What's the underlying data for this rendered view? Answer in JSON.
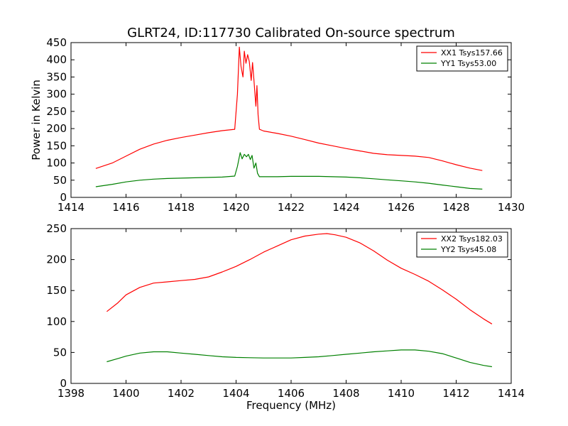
{
  "figure": {
    "title": "GLRT24, ID:117730 Calibrated On-source spectrum"
  },
  "chart_data": [
    {
      "type": "line",
      "title": "GLRT24, ID:117730 Calibrated On-source spectrum",
      "xlabel": "",
      "ylabel": "Power in Kelvin",
      "xlim": [
        1414,
        1430
      ],
      "ylim": [
        0,
        450
      ],
      "xticks": [
        1414,
        1416,
        1418,
        1420,
        1422,
        1424,
        1426,
        1428,
        1430
      ],
      "yticks": [
        0,
        50,
        100,
        150,
        200,
        250,
        300,
        350,
        400,
        450
      ],
      "legend_position": "top-right",
      "grid": false,
      "series": [
        {
          "name": "XX1 Tsys157.66",
          "color": "#ff0000",
          "x": [
            1414.9,
            1415.5,
            1416.0,
            1416.5,
            1417.0,
            1417.5,
            1418.0,
            1418.5,
            1419.0,
            1419.5,
            1419.95,
            1420.05,
            1420.12,
            1420.18,
            1420.25,
            1420.3,
            1420.36,
            1420.42,
            1420.48,
            1420.55,
            1420.6,
            1420.65,
            1420.72,
            1420.76,
            1420.8,
            1420.85,
            1421.0,
            1421.5,
            1422.0,
            1422.5,
            1423.0,
            1423.5,
            1424.0,
            1424.5,
            1425.0,
            1425.5,
            1426.0,
            1426.5,
            1427.0,
            1427.5,
            1428.0,
            1428.5,
            1428.95
          ],
          "values": [
            84,
            100,
            120,
            140,
            155,
            166,
            174,
            181,
            188,
            194,
            198,
            300,
            437,
            380,
            350,
            425,
            390,
            415,
            395,
            340,
            392,
            340,
            265,
            325,
            240,
            198,
            193,
            186,
            178,
            168,
            158,
            150,
            142,
            135,
            128,
            124,
            122,
            120,
            116,
            106,
            95,
            85,
            78
          ]
        },
        {
          "name": "YY1 Tsys53.00",
          "color": "#008000",
          "x": [
            1414.9,
            1415.5,
            1416.0,
            1416.5,
            1417.0,
            1417.5,
            1418.0,
            1418.5,
            1419.0,
            1419.5,
            1419.95,
            1420.05,
            1420.15,
            1420.22,
            1420.3,
            1420.38,
            1420.45,
            1420.52,
            1420.58,
            1420.65,
            1420.72,
            1420.78,
            1420.85,
            1421.0,
            1421.5,
            1422.0,
            1422.5,
            1423.0,
            1423.5,
            1424.0,
            1424.5,
            1425.0,
            1425.5,
            1426.0,
            1426.5,
            1427.0,
            1427.5,
            1428.0,
            1428.5,
            1428.95
          ],
          "values": [
            31,
            38,
            45,
            50,
            53,
            55,
            56,
            57,
            58,
            59,
            62,
            90,
            130,
            112,
            125,
            118,
            125,
            110,
            122,
            85,
            100,
            70,
            60,
            60,
            60,
            61,
            61,
            61,
            60,
            59,
            57,
            54,
            51,
            48,
            45,
            41,
            36,
            31,
            26,
            24
          ]
        }
      ]
    },
    {
      "type": "line",
      "title": "",
      "xlabel": "Frequency (MHz)",
      "ylabel": "",
      "xlim": [
        1398,
        1414
      ],
      "ylim": [
        0,
        250
      ],
      "xticks": [
        1398,
        1400,
        1402,
        1404,
        1406,
        1408,
        1410,
        1412,
        1414
      ],
      "yticks": [
        0,
        50,
        100,
        150,
        200,
        250
      ],
      "legend_position": "top-right",
      "grid": false,
      "series": [
        {
          "name": "XX2 Tsys182.03",
          "color": "#ff0000",
          "x": [
            1399.3,
            1399.7,
            1400.0,
            1400.5,
            1401.0,
            1401.5,
            1402.0,
            1402.5,
            1403.0,
            1403.5,
            1404.0,
            1404.5,
            1405.0,
            1405.5,
            1406.0,
            1406.5,
            1407.0,
            1407.3,
            1407.6,
            1408.0,
            1408.5,
            1409.0,
            1409.5,
            1410.0,
            1410.5,
            1411.0,
            1411.5,
            1412.0,
            1412.5,
            1413.0,
            1413.3
          ],
          "values": [
            116,
            130,
            143,
            155,
            162,
            164,
            166,
            168,
            172,
            180,
            189,
            200,
            212,
            222,
            232,
            238,
            241,
            242,
            240,
            236,
            227,
            214,
            199,
            186,
            176,
            165,
            151,
            136,
            119,
            104,
            96
          ]
        },
        {
          "name": "YY2 Tsys45.08",
          "color": "#008000",
          "x": [
            1399.3,
            1399.7,
            1400.0,
            1400.5,
            1401.0,
            1401.5,
            1402.0,
            1402.5,
            1403.0,
            1403.5,
            1404.0,
            1404.5,
            1405.0,
            1405.5,
            1406.0,
            1406.5,
            1407.0,
            1407.5,
            1408.0,
            1408.5,
            1409.0,
            1409.5,
            1410.0,
            1410.5,
            1411.0,
            1411.5,
            1412.0,
            1412.5,
            1413.0,
            1413.3
          ],
          "values": [
            35,
            40,
            44,
            49,
            51,
            51,
            49,
            47,
            45,
            43,
            42,
            41.5,
            41,
            41,
            41,
            42,
            43,
            45,
            47,
            49,
            51,
            52.5,
            54,
            54,
            52,
            48,
            41,
            34,
            29,
            27
          ]
        }
      ]
    }
  ]
}
